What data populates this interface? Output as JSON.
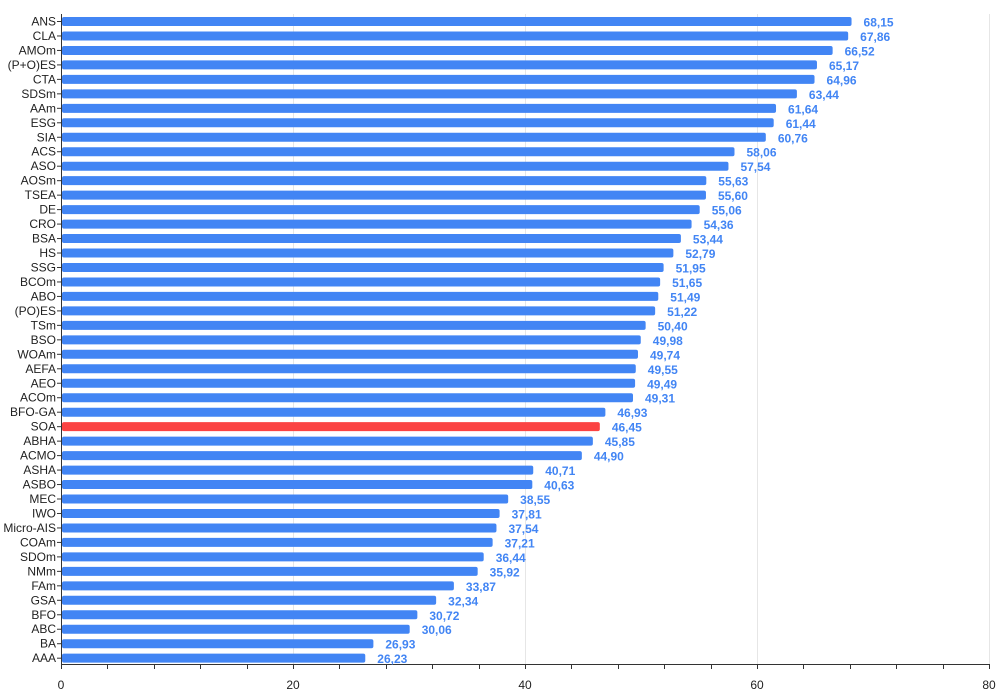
{
  "chart_data": {
    "type": "bar",
    "orientation": "horizontal",
    "title": "",
    "xlabel": "",
    "ylabel": "",
    "xlim": [
      0,
      80
    ],
    "x_ticks": [
      0,
      20,
      40,
      60,
      80
    ],
    "minor_tick_step": 4,
    "grid": true,
    "legend": "none",
    "bar_color": "#4285f4",
    "highlight_color": "#fb4343",
    "highlight_category": "SOA",
    "value_label_color": "#4285f4",
    "categories": [
      "ANS",
      "CLA",
      "AMOm",
      "(P+O)ES",
      "CTA",
      "SDSm",
      "AAm",
      "ESG",
      "SIA",
      "ACS",
      "ASO",
      "AOSm",
      "TSEA",
      "DE",
      "CRO",
      "BSA",
      "HS",
      "SSG",
      "BCOm",
      "ABO",
      "(PO)ES",
      "TSm",
      "BSO",
      "WOAm",
      "AEFA",
      "AEO",
      "ACOm",
      "BFO-GA",
      "SOA",
      "ABHA",
      "ACMO",
      "ASHA",
      "ASBO",
      "MEC",
      "IWO",
      "Micro-AIS",
      "COAm",
      "SDOm",
      "NMm",
      "FAm",
      "GSA",
      "BFO",
      "ABC",
      "BA",
      "AAA"
    ],
    "values": [
      68.15,
      67.86,
      66.52,
      65.17,
      64.96,
      63.44,
      61.64,
      61.44,
      60.76,
      58.06,
      57.54,
      55.63,
      55.6,
      55.06,
      54.36,
      53.44,
      52.79,
      51.95,
      51.65,
      51.49,
      51.22,
      50.4,
      49.98,
      49.74,
      49.55,
      49.49,
      49.31,
      46.93,
      46.45,
      45.85,
      44.9,
      40.71,
      40.63,
      38.55,
      37.81,
      37.54,
      37.21,
      36.44,
      35.92,
      33.87,
      32.34,
      30.72,
      30.06,
      26.93,
      26.23
    ],
    "value_labels": [
      "68,15",
      "67,86",
      "66,52",
      "65,17",
      "64,96",
      "63,44",
      "61,64",
      "61,44",
      "60,76",
      "58,06",
      "57,54",
      "55,63",
      "55,60",
      "55,06",
      "54,36",
      "53,44",
      "52,79",
      "51,95",
      "51,65",
      "51,49",
      "51,22",
      "50,40",
      "49,98",
      "49,74",
      "49,55",
      "49,49",
      "49,31",
      "46,93",
      "46,45",
      "45,85",
      "44,90",
      "40,71",
      "40,63",
      "38,55",
      "37,81",
      "37,54",
      "37,21",
      "36,44",
      "35,92",
      "33,87",
      "32,34",
      "30,72",
      "30,06",
      "26,93",
      "26,23"
    ]
  }
}
